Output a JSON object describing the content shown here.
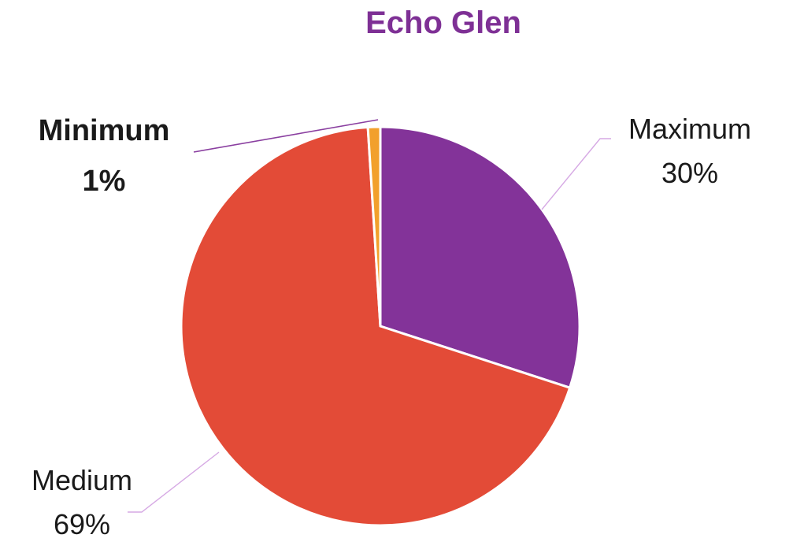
{
  "chart_data": {
    "type": "pie",
    "title": "Echo Glen",
    "start_angle_deg": 0,
    "direction": "clockwise",
    "slices": [
      {
        "label": "Maximum",
        "value": 30,
        "display": "30%",
        "color": "#833399",
        "label_bold": false
      },
      {
        "label": "Medium",
        "value": 69,
        "display": "69%",
        "color": "#E34B37",
        "label_bold": false
      },
      {
        "label": "Minimum",
        "value": 1,
        "display": "1%",
        "color": "#F2A02C",
        "label_bold": true
      }
    ]
  },
  "colors": {
    "title": "#7E3095",
    "leader_light": "#D6A9E4",
    "leader_dark": "#8A3FA0",
    "slice_border": "#ffffff"
  }
}
